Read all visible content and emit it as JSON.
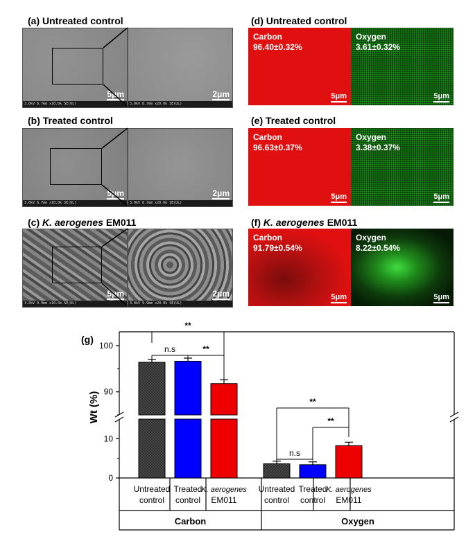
{
  "panels": {
    "a": {
      "label_prefix": "(a) Untreated control",
      "scale_main": "5μm",
      "scale_zoom": "2μm",
      "info_main": "3.0kV 8.7mm x10.0k SE(UL)",
      "info_main_r": "5.00μm",
      "info_zoom": "3.0kV 8.7mm x20.0k SE(UL)",
      "info_zoom_r": "2.00μm"
    },
    "b": {
      "label_prefix": "(b) Treated control",
      "scale_main": "5μm",
      "scale_zoom": "2μm",
      "info_main": "3.0kV 8.7mm x10.0k SE(UL)",
      "info_main_r": "5.00μm",
      "info_zoom": "3.0kV 8.7mm x20.0k SE(UL)",
      "info_zoom_r": "2.00μm"
    },
    "c": {
      "label_prefix": "(c) ",
      "label_italic": "K. aerogenes",
      "label_suffix": " EM011",
      "scale_main": "5μm",
      "scale_zoom": "2μm",
      "info_main": "3.0kV 9.9mm x10.0k SE(UL)",
      "info_main_r": "5.00μm",
      "info_zoom": "3.0kV 9.9mm x20.0k SE(UL)",
      "info_zoom_r": "2.00μm"
    },
    "d": {
      "label_prefix": "(d) Untreated control",
      "carbon_name": "Carbon",
      "carbon_value": "96.40±0.32%",
      "oxygen_name": "Oxygen",
      "oxygen_value": "3.61±0.32%",
      "scale": "5μm"
    },
    "e": {
      "label_prefix": "(e) Treated control",
      "carbon_name": "Carbon",
      "carbon_value": "96.63±0.37%",
      "oxygen_name": "Oxygen",
      "oxygen_value": "3.38±0.37%",
      "scale": "5μm"
    },
    "f": {
      "label_prefix": "(f) ",
      "label_italic": "K. aerogenes",
      "label_suffix": " EM011",
      "carbon_name": "Carbon",
      "carbon_value": "91.79±0.54%",
      "oxygen_name": "Oxygen",
      "oxygen_value": "8.22±0.54%",
      "scale": "5μm"
    }
  },
  "colors": {
    "untreated": "#4a4a4a",
    "treated": "#0000ff",
    "kaerogenes": "#ee0000",
    "carbon_map": "#e01010",
    "oxygen_map": "#22cc22"
  },
  "chart_data": {
    "type": "bar",
    "panel_label": "(g)",
    "ylabel": "Wt (%)",
    "broken_y_axis": true,
    "ylim_lower": [
      0,
      15
    ],
    "ylim_upper": [
      85,
      103
    ],
    "yticks": [
      0,
      10,
      90,
      100
    ],
    "groups": [
      {
        "name": "Carbon",
        "bars": [
          {
            "label": "Untreated control",
            "value": 96.4,
            "error": 0.32,
            "color": "#4a4a4a",
            "pattern": "checker"
          },
          {
            "label": "Treated control",
            "value": 96.63,
            "error": 0.37,
            "color": "#0000ff"
          },
          {
            "label_italic": "K. aerogenes",
            "label_suffix": "EM011",
            "value": 91.79,
            "error": 0.54,
            "color": "#ee0000"
          }
        ]
      },
      {
        "name": "Oxygen",
        "bars": [
          {
            "label": "Untreated control",
            "value": 3.61,
            "error": 0.32,
            "color": "#4a4a4a",
            "pattern": "checker"
          },
          {
            "label": "Treated control",
            "value": 3.38,
            "error": 0.37,
            "color": "#0000ff"
          },
          {
            "label_italic": "K. aerogenes",
            "label_suffix": "EM011",
            "value": 8.22,
            "error": 0.54,
            "color": "#ee0000"
          }
        ]
      }
    ],
    "significance": [
      {
        "group": "Carbon",
        "pair": [
          0,
          1
        ],
        "label": "n.s"
      },
      {
        "group": "Carbon",
        "pair": [
          1,
          2
        ],
        "label": "**"
      },
      {
        "group": "Carbon",
        "pair": [
          0,
          2
        ],
        "label": "**"
      },
      {
        "group": "Oxygen",
        "pair": [
          0,
          1
        ],
        "label": "n.s"
      },
      {
        "group": "Oxygen",
        "pair": [
          1,
          2
        ],
        "label": "**"
      },
      {
        "group": "Oxygen",
        "pair": [
          0,
          2
        ],
        "label": "**"
      }
    ]
  }
}
